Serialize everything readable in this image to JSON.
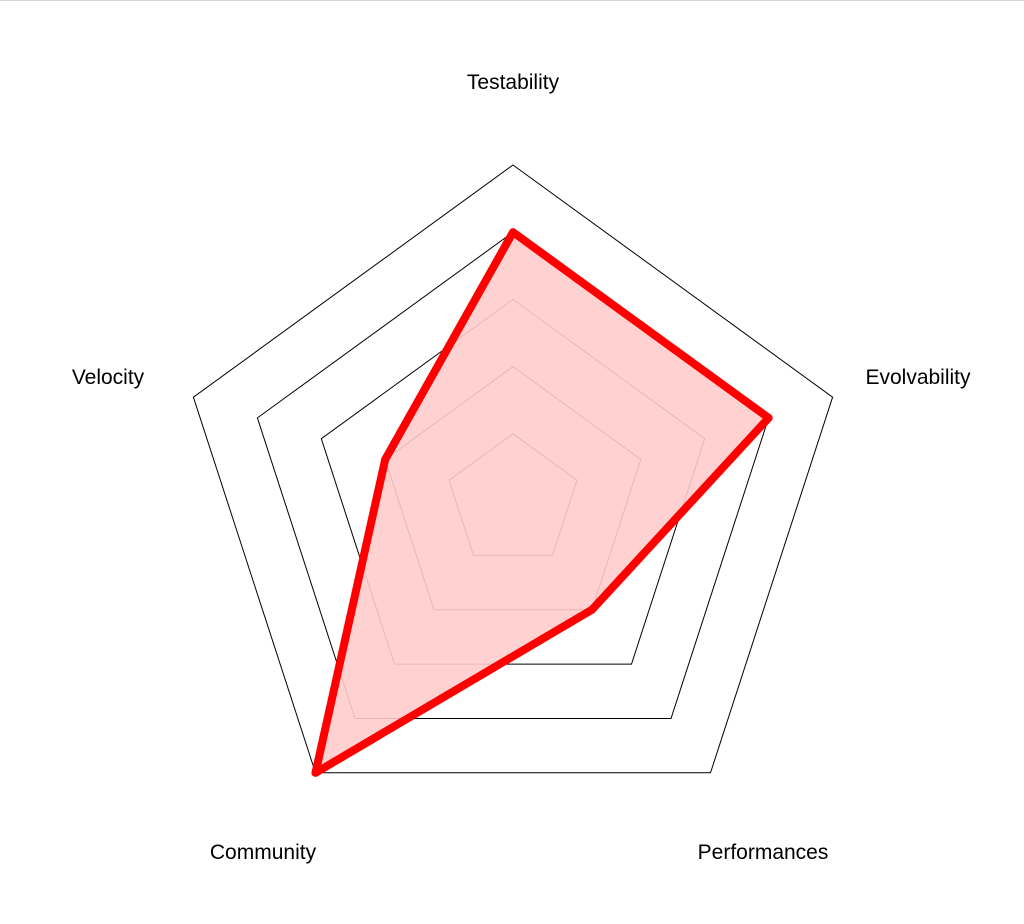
{
  "chart_data": {
    "type": "radar",
    "axes": [
      "Testability",
      "Evolvability",
      "Performances",
      "Community",
      "Velocity"
    ],
    "rlim": [
      0,
      5
    ],
    "levels": [
      1,
      2,
      3,
      4,
      5
    ],
    "series": [
      {
        "values": [
          4,
          4,
          2,
          5,
          2
        ],
        "color": "#ff0000",
        "fill": "#ffcccc"
      }
    ],
    "grid": true,
    "legend": "none"
  }
}
